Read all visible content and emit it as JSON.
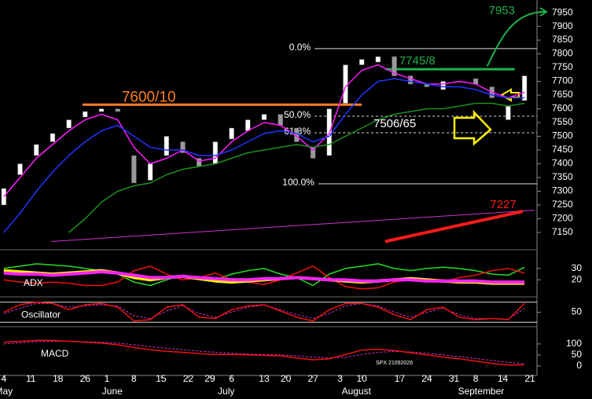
{
  "chart_data": [
    {
      "type": "candlestick",
      "xlim": [
        -0.7,
        98.3
      ],
      "ylim": [
        7087,
        7996
      ],
      "yticks": [
        7150,
        7200,
        7250,
        7300,
        7350,
        7400,
        7450,
        7500,
        7550,
        7600,
        7650,
        7700,
        7750,
        7800,
        7850,
        7900,
        7950
      ],
      "x": [
        0,
        3,
        6,
        9,
        12,
        15,
        18,
        21,
        24,
        27,
        30,
        33,
        36,
        39,
        42,
        45,
        48,
        51,
        54,
        57,
        60,
        63,
        66,
        69,
        72,
        75,
        78,
        81,
        84,
        87,
        90,
        93,
        96
      ],
      "open": [
        7250,
        7360,
        7430,
        7480,
        7530,
        7570,
        7590,
        7600,
        7430,
        7340,
        7430,
        7480,
        7420,
        7400,
        7490,
        7520,
        7560,
        7580,
        7530,
        7460,
        7430,
        7620,
        7760,
        7770,
        7790,
        7720,
        7690,
        7670,
        7700,
        7710,
        7680,
        7560,
        7630
      ],
      "close": [
        7310,
        7400,
        7470,
        7510,
        7560,
        7590,
        7600,
        7590,
        7330,
        7400,
        7500,
        7440,
        7390,
        7480,
        7530,
        7560,
        7580,
        7540,
        7480,
        7420,
        7600,
        7760,
        7780,
        7790,
        7720,
        7690,
        7680,
        7700,
        7700,
        7690,
        7640,
        7610,
        7720
      ],
      "up_color": "#ffffff",
      "down_color": "#9a9a9a",
      "series": [
        {
          "color": "#ff1aff",
          "values": [
            7280,
            7350,
            7420,
            7470,
            7520,
            7560,
            7580,
            7560,
            7460,
            7400,
            7420,
            7450,
            7410,
            7420,
            7480,
            7520,
            7550,
            7540,
            7500,
            7450,
            7510,
            7680,
            7740,
            7760,
            7730,
            7710,
            7690,
            7690,
            7700,
            7690,
            7660,
            7640,
            7660
          ]
        },
        {
          "color": "#2233ff",
          "values": [
            7150,
            7220,
            7300,
            7370,
            7430,
            7480,
            7520,
            7540,
            7500,
            7460,
            7450,
            7450,
            7430,
            7430,
            7450,
            7480,
            7510,
            7520,
            7510,
            7480,
            7500,
            7580,
            7650,
            7700,
            7710,
            7700,
            7690,
            7680,
            7680,
            7670,
            7650,
            7640,
            7640
          ]
        },
        {
          "color": "#1f8f1f",
          "values": [
            null,
            null,
            null,
            null,
            7150,
            7200,
            7260,
            7300,
            7320,
            7330,
            7360,
            7380,
            7390,
            7400,
            7420,
            7440,
            7450,
            7460,
            7470,
            7460,
            7470,
            7500,
            7530,
            7560,
            7580,
            7590,
            7600,
            7600,
            7610,
            7620,
            7620,
            7610,
            7620
          ]
        }
      ],
      "levels": [
        {
          "label": "0.0%",
          "value": 7819,
          "from": 57.3,
          "dashed": false
        },
        {
          "label": "50.0%",
          "value": 7573,
          "from": 57.3,
          "dashed": true
        },
        {
          "label": "61.8%",
          "value": 7513,
          "from": 57.3,
          "dashed": true
        },
        {
          "label": "100.0%",
          "value": 7327,
          "from": 58,
          "dashed": false
        }
      ],
      "resistance": [
        {
          "label": "7600/10",
          "value": 7615,
          "from": 14.5,
          "to": 66,
          "color": "#ff7f1f"
        },
        {
          "label": "7745/8",
          "value": 7744,
          "from": 70.3,
          "to": 94.2,
          "color": "#1db34a"
        }
      ],
      "trendlines": [
        {
          "color": "#cc33cc",
          "points": [
            [
              8.7,
              7117
            ],
            [
              97.8,
              7231
            ]
          ]
        },
        {
          "color": "#ff1a1a",
          "label": "7227",
          "points": [
            [
              70.3,
              7117
            ],
            [
              95.7,
              7227
            ]
          ]
        }
      ],
      "target": {
        "label": "7953",
        "value": 7953,
        "color": "#1db34a"
      },
      "note": "7506/65"
    },
    {
      "type": "line",
      "label": "ADX",
      "xlim": [
        -0.7,
        98.3
      ],
      "ylim": [
        5,
        45
      ],
      "yticks": [
        20,
        30
      ],
      "x": [
        0,
        3,
        6,
        9,
        12,
        15,
        18,
        21,
        24,
        27,
        30,
        33,
        36,
        39,
        42,
        45,
        48,
        51,
        54,
        57,
        60,
        63,
        66,
        69,
        72,
        75,
        78,
        81,
        84,
        87,
        90,
        93,
        96
      ],
      "series": [
        {
          "color": "#22dd22",
          "width": 1.5,
          "values": [
            30,
            32,
            34,
            33,
            32,
            30,
            28,
            25,
            18,
            15,
            20,
            24,
            22,
            20,
            25,
            28,
            30,
            25,
            22,
            15,
            25,
            30,
            32,
            34,
            30,
            28,
            30,
            31,
            30,
            28,
            25,
            24,
            31
          ]
        },
        {
          "color": "#ee1111",
          "width": 1.5,
          "values": [
            20,
            18,
            17,
            18,
            17,
            15,
            15,
            18,
            28,
            32,
            25,
            20,
            22,
            26,
            20,
            18,
            16,
            20,
            26,
            32,
            22,
            14,
            12,
            13,
            18,
            20,
            19,
            18,
            22,
            24,
            28,
            30,
            26
          ]
        },
        {
          "color": "#ffee00",
          "width": 4,
          "values": [
            28,
            27,
            26,
            25,
            26,
            27,
            28,
            26,
            22,
            20,
            22,
            23,
            21,
            19,
            18,
            19,
            20,
            21,
            22,
            21,
            20,
            19,
            18,
            19,
            20,
            21,
            20,
            19,
            18,
            18,
            17,
            17,
            17
          ]
        },
        {
          "color": "#ff22ff",
          "width": 4,
          "values": [
            26,
            25,
            25,
            24,
            25,
            26,
            27,
            26,
            24,
            22,
            22,
            23,
            22,
            21,
            20,
            20,
            21,
            21,
            22,
            21,
            20,
            20,
            19,
            19,
            20,
            20,
            19,
            19,
            19,
            19,
            18,
            18,
            18
          ]
        }
      ]
    },
    {
      "type": "line",
      "label": "Oscillator",
      "xlim": [
        -0.7,
        98.3
      ],
      "ylim": [
        -5,
        105
      ],
      "yticks": [
        50
      ],
      "hlines": [
        10,
        90
      ],
      "x": [
        0,
        3,
        6,
        9,
        12,
        15,
        18,
        21,
        24,
        27,
        30,
        33,
        36,
        39,
        42,
        45,
        48,
        51,
        54,
        57,
        60,
        63,
        66,
        69,
        72,
        75,
        78,
        81,
        84,
        87,
        90,
        93,
        96
      ],
      "series": [
        {
          "color": "#cc33cc",
          "width": 1,
          "dashed": true,
          "values": [
            45,
            65,
            85,
            85,
            70,
            75,
            80,
            75,
            35,
            25,
            55,
            75,
            45,
            30,
            50,
            70,
            78,
            60,
            40,
            25,
            45,
            75,
            85,
            75,
            50,
            30,
            50,
            65,
            40,
            25,
            25,
            22,
            65
          ]
        },
        {
          "color": "#ee1111",
          "width": 1.5,
          "values": [
            50,
            80,
            90,
            85,
            60,
            80,
            85,
            70,
            15,
            20,
            70,
            80,
            30,
            25,
            60,
            75,
            80,
            55,
            30,
            15,
            60,
            85,
            85,
            70,
            40,
            20,
            60,
            70,
            30,
            20,
            25,
            20,
            85
          ]
        }
      ]
    },
    {
      "type": "line",
      "label": "MACD",
      "xlim": [
        -0.7,
        98.3
      ],
      "ylim": [
        -36,
        171
      ],
      "yticks": [
        0,
        50,
        100
      ],
      "x": [
        0,
        3,
        6,
        9,
        12,
        15,
        18,
        21,
        24,
        27,
        30,
        33,
        36,
        39,
        42,
        45,
        48,
        51,
        54,
        57,
        60,
        63,
        66,
        69,
        72,
        75,
        78,
        81,
        84,
        87,
        90,
        93,
        96
      ],
      "series": [
        {
          "color": "#cc33cc",
          "width": 1,
          "dashed": true,
          "values": [
            100,
            105,
            110,
            112,
            112,
            110,
            108,
            104,
            96,
            88,
            80,
            74,
            68,
            62,
            58,
            54,
            52,
            50,
            46,
            40,
            36,
            40,
            52,
            62,
            66,
            64,
            58,
            50,
            42,
            34,
            25,
            16,
            10
          ]
        },
        {
          "color": "#ee1111",
          "width": 1.5,
          "values": [
            108,
            112,
            116,
            116,
            112,
            108,
            104,
            96,
            84,
            74,
            66,
            62,
            56,
            52,
            52,
            50,
            48,
            46,
            36,
            28,
            32,
            52,
            72,
            76,
            70,
            60,
            50,
            40,
            32,
            22,
            12,
            4,
            5
          ]
        }
      ],
      "stamp": "SPX 21092026",
      "xticks": [
        {
          "value": 0,
          "label": "4"
        },
        {
          "value": 5,
          "label": "11"
        },
        {
          "value": 10,
          "label": "18"
        },
        {
          "value": 15,
          "label": "26"
        },
        {
          "value": 19,
          "label": "1"
        },
        {
          "value": 24,
          "label": "8"
        },
        {
          "value": 29,
          "label": "15"
        },
        {
          "value": 34,
          "label": "22"
        },
        {
          "value": 38,
          "label": "29"
        },
        {
          "value": 42,
          "label": "6"
        },
        {
          "value": 48,
          "label": "13"
        },
        {
          "value": 52,
          "label": "20"
        },
        {
          "value": 57,
          "label": "27"
        },
        {
          "value": 62,
          "label": "3"
        },
        {
          "value": 66,
          "label": "10"
        },
        {
          "value": 73,
          "label": "17"
        },
        {
          "value": 78,
          "label": "24"
        },
        {
          "value": 83,
          "label": "31"
        },
        {
          "value": 87,
          "label": "8"
        },
        {
          "value": 92,
          "label": "14"
        },
        {
          "value": 97,
          "label": "21"
        }
      ],
      "months": [
        {
          "value": 0,
          "label": "May"
        },
        {
          "value": 20,
          "label": "June"
        },
        {
          "value": 41,
          "label": "July"
        },
        {
          "value": 65,
          "label": "August"
        },
        {
          "value": 88,
          "label": "September"
        }
      ]
    }
  ]
}
